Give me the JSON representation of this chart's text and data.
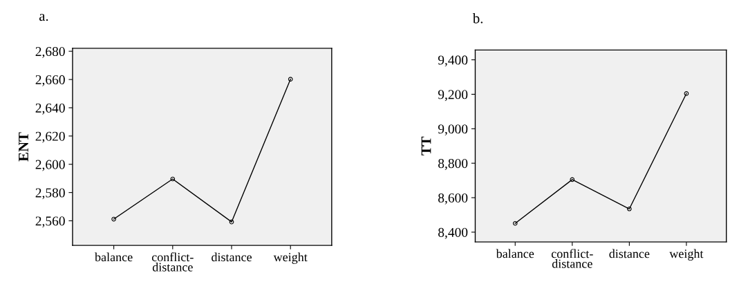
{
  "chart_data": [
    {
      "type": "line",
      "title": "a.",
      "ylabel": "ENT",
      "categories": [
        "balance",
        "conflict-\ndistance",
        "distance",
        "weight"
      ],
      "series": [
        {
          "color": "#000000",
          "values": [
            2561.2,
            2589.6,
            2559.2,
            2660.2
          ]
        }
      ],
      "ylim": [
        2542.6,
        2682.1
      ],
      "yticks": [
        {
          "value": 2560,
          "label": "2,560"
        },
        {
          "value": 2580,
          "label": "2,580"
        },
        {
          "value": 2600,
          "label": "2,600"
        },
        {
          "value": 2620,
          "label": "2,620"
        },
        {
          "value": 2640,
          "label": "2,640"
        },
        {
          "value": 2660,
          "label": "2,660"
        },
        {
          "value": 2680,
          "label": "2,680"
        }
      ],
      "marker": "circle",
      "line_style": "solid",
      "grid": false,
      "legend": false
    },
    {
      "type": "line",
      "title": "b.",
      "ylabel": "TT",
      "categories": [
        "balance",
        "conflict-\ndistance",
        "distance",
        "weight"
      ],
      "series": [
        {
          "color": "#000000",
          "values": [
            8451,
            8705,
            8535,
            9204
          ]
        }
      ],
      "ylim": [
        8343,
        9457
      ],
      "yticks": [
        {
          "value": 8400,
          "label": "8,400"
        },
        {
          "value": 8600,
          "label": "8,600"
        },
        {
          "value": 8800,
          "label": "8,800"
        },
        {
          "value": 9000,
          "label": "9,000"
        },
        {
          "value": 9200,
          "label": "9,200"
        },
        {
          "value": 9400,
          "label": "9,400"
        }
      ],
      "marker": "circle",
      "line_style": "solid",
      "grid": false,
      "legend": false
    }
  ]
}
